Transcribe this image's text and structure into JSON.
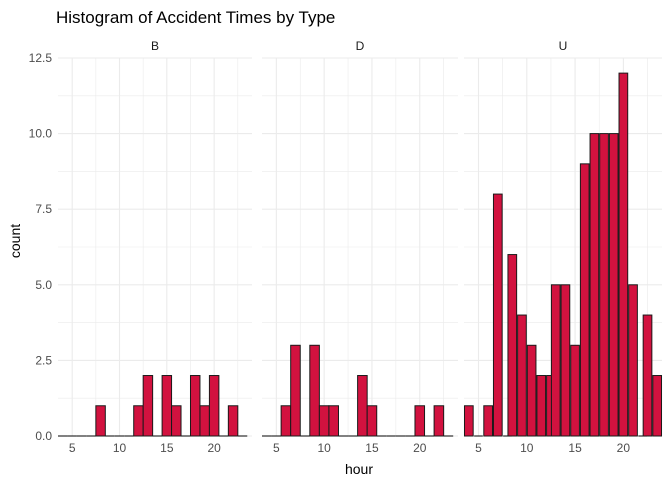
{
  "chart_data": {
    "type": "bar",
    "title": "Histogram of Accident Times by Type",
    "xlabel": "hour",
    "ylabel": "count",
    "bar_color": "#D2123F",
    "bar_outline": "#1A1A1A",
    "grid": true,
    "grid_color": "#EBEBEB",
    "xlim": [
      3.5,
      24
    ],
    "ylim": [
      0,
      12.5
    ],
    "x_ticks": [
      5,
      10,
      15,
      20
    ],
    "x_tick_labels": [
      "5",
      "10",
      "15",
      "20"
    ],
    "y_ticks": [
      0,
      2.5,
      5,
      7.5,
      10,
      12.5
    ],
    "y_tick_labels": [
      "0.0",
      "2.5",
      "5.0",
      "7.5",
      "10.0",
      "12.5"
    ],
    "x": [
      4,
      5,
      6,
      7,
      8,
      9,
      10,
      11,
      12,
      13,
      14,
      15,
      16,
      17,
      18,
      19,
      20,
      21,
      22,
      23
    ],
    "facets": [
      {
        "name": "B",
        "values": [
          0,
          0,
          0,
          0,
          1,
          0,
          0,
          0,
          1,
          2,
          0,
          2,
          1,
          0,
          2,
          1,
          2,
          0,
          1,
          0
        ]
      },
      {
        "name": "D",
        "values": [
          0,
          0,
          1,
          3,
          0,
          3,
          1,
          1,
          0,
          0,
          2,
          1,
          0,
          0,
          0,
          0,
          1,
          0,
          1,
          0
        ]
      },
      {
        "name": "U",
        "values": [
          1,
          0,
          1,
          8,
          0,
          6,
          4,
          3,
          2,
          2,
          5,
          5,
          3,
          9,
          0,
          10,
          10,
          10,
          12,
          5,
          0,
          4,
          2
        ],
        "x": [
          4,
          5,
          6,
          7,
          8,
          8.5,
          9.5,
          10.5,
          11.5,
          12.5,
          13,
          14,
          15,
          16,
          17,
          17,
          18,
          19,
          20,
          21,
          22,
          22.5,
          23.5
        ]
      }
    ]
  }
}
